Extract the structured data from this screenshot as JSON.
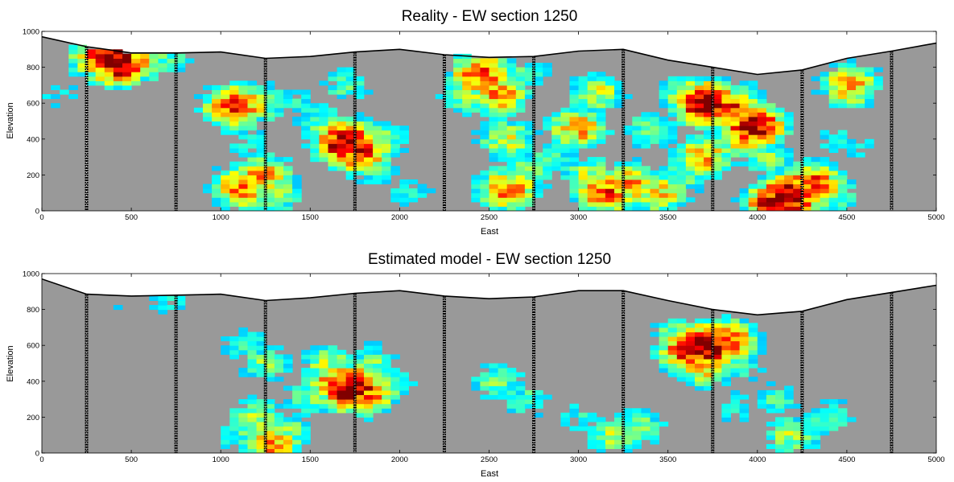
{
  "chart_data": [
    {
      "type": "heatmap",
      "title": "Reality - EW section 1250",
      "xlabel": "East",
      "ylabel": "Elevation",
      "xlim": [
        0,
        5000
      ],
      "ylim": [
        0,
        1000
      ],
      "xticks": [
        "0",
        "500",
        "1000",
        "1500",
        "2000",
        "2500",
        "3000",
        "3500",
        "4000",
        "4500",
        "5000"
      ],
      "yticks": [
        "0",
        "200",
        "400",
        "600",
        "800",
        "1000"
      ],
      "background_color": "#999999",
      "colormap": "jet",
      "drillholes_east": [
        250,
        750,
        1250,
        1750,
        2250,
        2750,
        3250,
        3750,
        4250,
        4750
      ],
      "topography": [
        [
          0,
          970
        ],
        [
          250,
          915
        ],
        [
          500,
          880
        ],
        [
          750,
          880
        ],
        [
          1000,
          885
        ],
        [
          1250,
          850
        ],
        [
          1500,
          860
        ],
        [
          1750,
          885
        ],
        [
          2000,
          900
        ],
        [
          2250,
          870
        ],
        [
          2500,
          855
        ],
        [
          2750,
          860
        ],
        [
          3000,
          890
        ],
        [
          3250,
          900
        ],
        [
          3500,
          840
        ],
        [
          3750,
          800
        ],
        [
          4000,
          760
        ],
        [
          4250,
          785
        ],
        [
          4500,
          850
        ],
        [
          4750,
          890
        ],
        [
          5000,
          935
        ]
      ],
      "anomalies": [
        {
          "x": 420,
          "y": 830,
          "v": 1.0
        },
        {
          "x": 330,
          "y": 860,
          "v": 0.8
        },
        {
          "x": 520,
          "y": 840,
          "v": 0.75
        },
        {
          "x": 700,
          "y": 850,
          "v": 0.45
        },
        {
          "x": 90,
          "y": 650,
          "v": 0.35
        },
        {
          "x": 1080,
          "y": 580,
          "v": 0.85
        },
        {
          "x": 1200,
          "y": 600,
          "v": 0.6
        },
        {
          "x": 1150,
          "y": 380,
          "v": 0.4
        },
        {
          "x": 1120,
          "y": 130,
          "v": 0.75
        },
        {
          "x": 1230,
          "y": 200,
          "v": 0.7
        },
        {
          "x": 1300,
          "y": 90,
          "v": 0.55
        },
        {
          "x": 1400,
          "y": 620,
          "v": 0.4
        },
        {
          "x": 1550,
          "y": 520,
          "v": 0.45
        },
        {
          "x": 1700,
          "y": 380,
          "v": 1.0
        },
        {
          "x": 1780,
          "y": 330,
          "v": 0.85
        },
        {
          "x": 1620,
          "y": 450,
          "v": 0.55
        },
        {
          "x": 1900,
          "y": 400,
          "v": 0.5
        },
        {
          "x": 1850,
          "y": 250,
          "v": 0.5
        },
        {
          "x": 1700,
          "y": 700,
          "v": 0.45
        },
        {
          "x": 2050,
          "y": 100,
          "v": 0.4
        },
        {
          "x": 2450,
          "y": 760,
          "v": 0.8
        },
        {
          "x": 2550,
          "y": 650,
          "v": 0.75
        },
        {
          "x": 2380,
          "y": 640,
          "v": 0.55
        },
        {
          "x": 2700,
          "y": 760,
          "v": 0.45
        },
        {
          "x": 2600,
          "y": 400,
          "v": 0.6
        },
        {
          "x": 2700,
          "y": 200,
          "v": 0.55
        },
        {
          "x": 2600,
          "y": 120,
          "v": 0.75
        },
        {
          "x": 2850,
          "y": 300,
          "v": 0.45
        },
        {
          "x": 3000,
          "y": 460,
          "v": 0.7
        },
        {
          "x": 3050,
          "y": 200,
          "v": 0.55
        },
        {
          "x": 3150,
          "y": 100,
          "v": 0.8
        },
        {
          "x": 3300,
          "y": 150,
          "v": 0.7
        },
        {
          "x": 3450,
          "y": 100,
          "v": 0.65
        },
        {
          "x": 3100,
          "y": 650,
          "v": 0.6
        },
        {
          "x": 3400,
          "y": 450,
          "v": 0.5
        },
        {
          "x": 3720,
          "y": 600,
          "v": 1.0
        },
        {
          "x": 3830,
          "y": 570,
          "v": 0.85
        },
        {
          "x": 3620,
          "y": 650,
          "v": 0.6
        },
        {
          "x": 3700,
          "y": 300,
          "v": 0.7
        },
        {
          "x": 3600,
          "y": 200,
          "v": 0.5
        },
        {
          "x": 3980,
          "y": 470,
          "v": 0.95
        },
        {
          "x": 3920,
          "y": 420,
          "v": 0.75
        },
        {
          "x": 4050,
          "y": 300,
          "v": 0.5
        },
        {
          "x": 3900,
          "y": 650,
          "v": 0.45
        },
        {
          "x": 4180,
          "y": 80,
          "v": 1.0
        },
        {
          "x": 4300,
          "y": 150,
          "v": 0.85
        },
        {
          "x": 4100,
          "y": 40,
          "v": 0.9
        },
        {
          "x": 4400,
          "y": 100,
          "v": 0.55
        },
        {
          "x": 4520,
          "y": 700,
          "v": 0.7
        },
        {
          "x": 4450,
          "y": 400,
          "v": 0.4
        },
        {
          "x": 4600,
          "y": 350,
          "v": 0.35
        }
      ]
    },
    {
      "type": "heatmap",
      "title": "Estimated model - EW section 1250",
      "xlabel": "East",
      "ylabel": "Elevation",
      "xlim": [
        0,
        5000
      ],
      "ylim": [
        0,
        1000
      ],
      "xticks": [
        "0",
        "500",
        "1000",
        "1500",
        "2000",
        "2500",
        "3000",
        "3500",
        "4000",
        "4500",
        "5000"
      ],
      "yticks": [
        "0",
        "200",
        "400",
        "600",
        "800",
        "1000"
      ],
      "background_color": "#999999",
      "colormap": "jet",
      "drillholes_east": [
        250,
        750,
        1250,
        1750,
        2250,
        2750,
        3250,
        3750,
        4250,
        4750
      ],
      "topography": [
        [
          0,
          970
        ],
        [
          250,
          885
        ],
        [
          500,
          875
        ],
        [
          750,
          880
        ],
        [
          1000,
          885
        ],
        [
          1250,
          850
        ],
        [
          1500,
          865
        ],
        [
          1750,
          890
        ],
        [
          2000,
          905
        ],
        [
          2250,
          875
        ],
        [
          2500,
          860
        ],
        [
          2750,
          870
        ],
        [
          3000,
          905
        ],
        [
          3250,
          905
        ],
        [
          3500,
          850
        ],
        [
          3750,
          800
        ],
        [
          4000,
          770
        ],
        [
          4250,
          790
        ],
        [
          4500,
          855
        ],
        [
          4750,
          895
        ],
        [
          5000,
          935
        ]
      ],
      "anomalies": [
        {
          "x": 1730,
          "y": 360,
          "v": 1.0
        },
        {
          "x": 1650,
          "y": 400,
          "v": 0.75
        },
        {
          "x": 1820,
          "y": 330,
          "v": 0.75
        },
        {
          "x": 1600,
          "y": 500,
          "v": 0.55
        },
        {
          "x": 1850,
          "y": 500,
          "v": 0.5
        },
        {
          "x": 1500,
          "y": 300,
          "v": 0.5
        },
        {
          "x": 1950,
          "y": 400,
          "v": 0.45
        },
        {
          "x": 1250,
          "y": 500,
          "v": 0.5
        },
        {
          "x": 1150,
          "y": 600,
          "v": 0.45
        },
        {
          "x": 1200,
          "y": 200,
          "v": 0.55
        },
        {
          "x": 1280,
          "y": 60,
          "v": 0.75
        },
        {
          "x": 1350,
          "y": 120,
          "v": 0.55
        },
        {
          "x": 1100,
          "y": 100,
          "v": 0.45
        },
        {
          "x": 3720,
          "y": 600,
          "v": 1.0
        },
        {
          "x": 3620,
          "y": 570,
          "v": 0.85
        },
        {
          "x": 3820,
          "y": 620,
          "v": 0.85
        },
        {
          "x": 3700,
          "y": 480,
          "v": 0.65
        },
        {
          "x": 3550,
          "y": 650,
          "v": 0.55
        },
        {
          "x": 3900,
          "y": 500,
          "v": 0.45
        },
        {
          "x": 2550,
          "y": 400,
          "v": 0.5
        },
        {
          "x": 2700,
          "y": 300,
          "v": 0.45
        },
        {
          "x": 3200,
          "y": 100,
          "v": 0.55
        },
        {
          "x": 3350,
          "y": 150,
          "v": 0.5
        },
        {
          "x": 3000,
          "y": 200,
          "v": 0.4
        },
        {
          "x": 4200,
          "y": 100,
          "v": 0.55
        },
        {
          "x": 4400,
          "y": 200,
          "v": 0.45
        },
        {
          "x": 4100,
          "y": 300,
          "v": 0.45
        },
        {
          "x": 3900,
          "y": 250,
          "v": 0.4
        },
        {
          "x": 700,
          "y": 860,
          "v": 0.4
        },
        {
          "x": 450,
          "y": 850,
          "v": 0.35
        }
      ]
    }
  ]
}
